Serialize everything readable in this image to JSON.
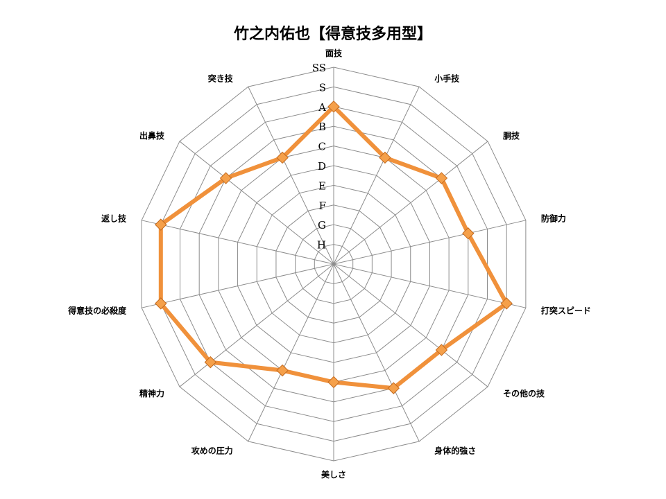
{
  "chart_data": {
    "type": "radar",
    "title": "竹之内佑也【得意技多用型】",
    "categories": [
      "面技",
      "小手技",
      "胴技",
      "防御力",
      "打突スピード",
      "その他の技",
      "身体的強さ",
      "美しさ",
      "攻めの圧力",
      "精神力",
      "得意技の必殺度",
      "返し技",
      "出鼻技",
      "突き技"
    ],
    "scale_labels": [
      "H",
      "G",
      "F",
      "E",
      "D",
      "C",
      "B",
      "A",
      "S",
      "SS"
    ],
    "series": [
      {
        "color": "#f0913b",
        "values": [
          "A",
          "C",
          "B",
          "B",
          "S",
          "B",
          "B",
          "C",
          "C",
          "A",
          "S",
          "S",
          "B",
          "C"
        ],
        "values_numeric": [
          8,
          6,
          7,
          7,
          9,
          7,
          7,
          6,
          6,
          8,
          9,
          9,
          7,
          6
        ]
      }
    ],
    "rmax": 10,
    "grid": true,
    "legend": "none"
  }
}
